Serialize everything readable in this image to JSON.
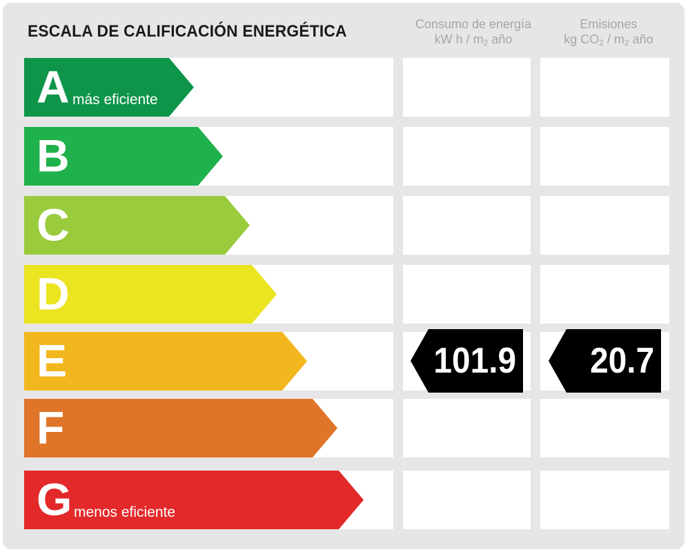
{
  "title": "ESCALA DE CALIFICACIÓN ENERGÉTICA",
  "columns": {
    "consumo": {
      "line1": "Consumo de energía",
      "line2_pre": "kW h / m",
      "line2_sub": "2",
      "line2_post": " año"
    },
    "emisiones": {
      "line1": "Emisiones",
      "line2_pre": "kg CO",
      "line2_sub1": "2",
      "line2_mid": " / m",
      "line2_sub2": "2",
      "line2_post": " año"
    }
  },
  "grades": [
    {
      "letter": "A",
      "label": "más eficiente",
      "color": "#0e9549"
    },
    {
      "letter": "B",
      "label": "",
      "color": "#1fb14c"
    },
    {
      "letter": "C",
      "label": "",
      "color": "#9acb3c"
    },
    {
      "letter": "D",
      "label": "",
      "color": "#ebe421"
    },
    {
      "letter": "E",
      "label": "",
      "color": "#f2b71f"
    },
    {
      "letter": "F",
      "label": "",
      "color": "#df7528"
    },
    {
      "letter": "G",
      "label": "menos eficiente",
      "color": "#e3292a"
    }
  ],
  "rating": {
    "grade": "E",
    "consumo_value": "101.9",
    "emisiones_value": "20.7"
  }
}
